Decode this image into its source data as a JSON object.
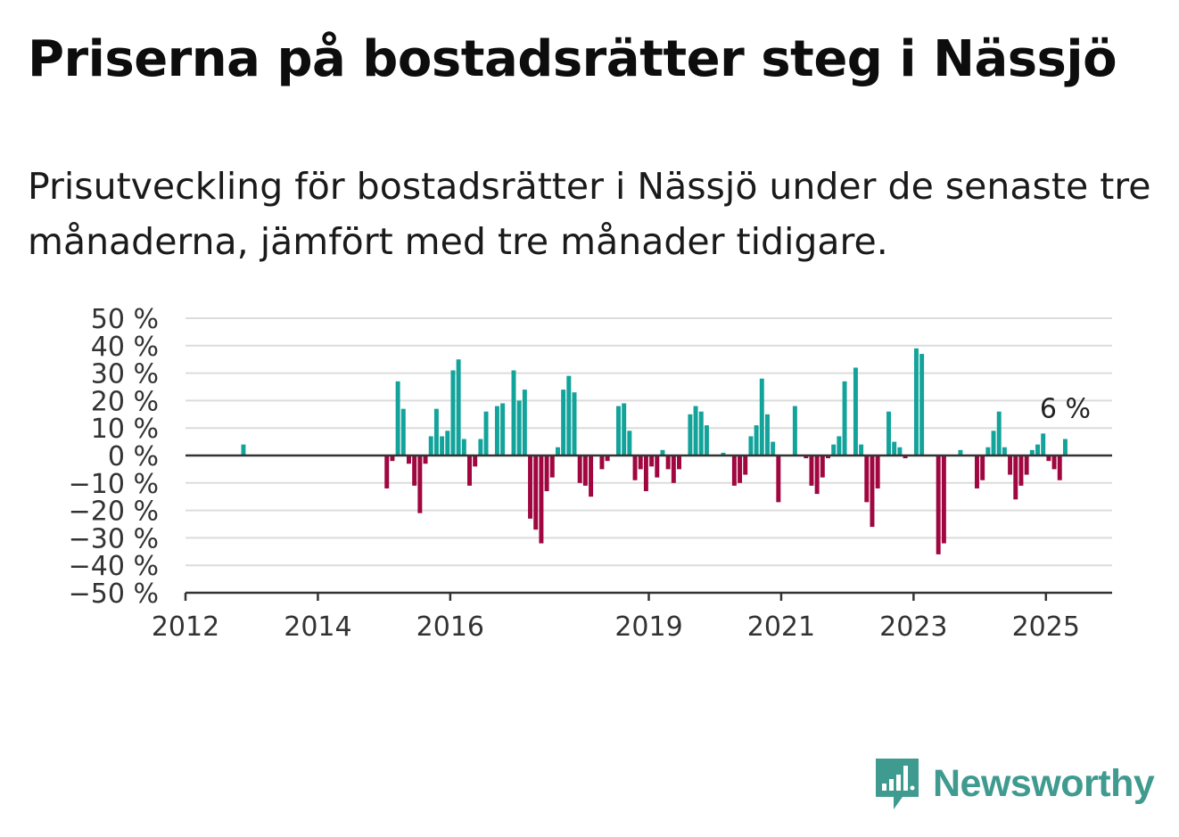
{
  "header": {
    "title": "Priserna på bostadsrätter steg i Nässjö",
    "subtitle": "Prisutveckling för bostadsrätter i Nässjö under de senaste tre månaderna, jämfört med tre månader tidigare."
  },
  "brand": {
    "name": "Newsworthy",
    "icon": "newsworthy-bar-chart-icon"
  },
  "colors": {
    "positive": "#12a39b",
    "negative": "#a0063f",
    "axis": "#333333",
    "grid": "#dcdcdc",
    "brand": "#3f9a8f"
  },
  "chart_data": {
    "type": "bar",
    "title": "",
    "xlabel": "",
    "ylabel": "",
    "ylim": [
      -50,
      50
    ],
    "yticks": [
      50,
      40,
      30,
      20,
      10,
      0,
      -10,
      -20,
      -30,
      -40,
      -50
    ],
    "ytick_labels": [
      "50 %",
      "40 %",
      "30 %",
      "20 %",
      "10 %",
      "0 %",
      "−10 %",
      "−20 %",
      "−30 %",
      "−40 %",
      "−50 %"
    ],
    "xlim": [
      "2012-01",
      "2026-01"
    ],
    "xtick_labels": [
      "2012",
      "2014",
      "2016",
      "2019",
      "2021",
      "2023",
      "2025"
    ],
    "grid": true,
    "last_value_label": "6 %",
    "series": [
      {
        "values": [
          [
            "2012-11",
            4
          ],
          [
            "2015-01",
            -12
          ],
          [
            "2015-02",
            -2
          ],
          [
            "2015-03",
            27
          ],
          [
            "2015-04",
            17
          ],
          [
            "2015-05",
            -3
          ],
          [
            "2015-06",
            -11
          ],
          [
            "2015-07",
            -21
          ],
          [
            "2015-08",
            -3
          ],
          [
            "2015-09",
            7
          ],
          [
            "2015-10",
            17
          ],
          [
            "2015-11",
            7
          ],
          [
            "2015-12",
            9
          ],
          [
            "2016-01",
            31
          ],
          [
            "2016-02",
            35
          ],
          [
            "2016-03",
            6
          ],
          [
            "2016-04",
            -11
          ],
          [
            "2016-05",
            -4
          ],
          [
            "2016-06",
            6
          ],
          [
            "2016-07",
            16
          ],
          [
            "2016-09",
            18
          ],
          [
            "2016-10",
            19
          ],
          [
            "2016-12",
            31
          ],
          [
            "2017-01",
            20
          ],
          [
            "2017-02",
            24
          ],
          [
            "2017-03",
            -23
          ],
          [
            "2017-04",
            -27
          ],
          [
            "2017-05",
            -32
          ],
          [
            "2017-06",
            -13
          ],
          [
            "2017-07",
            -8
          ],
          [
            "2017-08",
            3
          ],
          [
            "2017-09",
            24
          ],
          [
            "2017-10",
            29
          ],
          [
            "2017-11",
            23
          ],
          [
            "2017-12",
            -10
          ],
          [
            "2018-01",
            -11
          ],
          [
            "2018-02",
            -15
          ],
          [
            "2018-04",
            -5
          ],
          [
            "2018-05",
            -2
          ],
          [
            "2018-07",
            18
          ],
          [
            "2018-08",
            19
          ],
          [
            "2018-09",
            9
          ],
          [
            "2018-10",
            -9
          ],
          [
            "2018-11",
            -5
          ],
          [
            "2018-12",
            -13
          ],
          [
            "2019-01",
            -4
          ],
          [
            "2019-02",
            -8
          ],
          [
            "2019-03",
            2
          ],
          [
            "2019-04",
            -5
          ],
          [
            "2019-05",
            -10
          ],
          [
            "2019-06",
            -5
          ],
          [
            "2019-08",
            15
          ],
          [
            "2019-09",
            18
          ],
          [
            "2019-10",
            16
          ],
          [
            "2019-11",
            11
          ],
          [
            "2020-02",
            1
          ],
          [
            "2020-04",
            -11
          ],
          [
            "2020-05",
            -10
          ],
          [
            "2020-06",
            -7
          ],
          [
            "2020-07",
            7
          ],
          [
            "2020-08",
            11
          ],
          [
            "2020-09",
            28
          ],
          [
            "2020-10",
            15
          ],
          [
            "2020-11",
            5
          ],
          [
            "2020-12",
            -17
          ],
          [
            "2021-03",
            18
          ],
          [
            "2021-05",
            -1
          ],
          [
            "2021-06",
            -11
          ],
          [
            "2021-07",
            -14
          ],
          [
            "2021-08",
            -8
          ],
          [
            "2021-09",
            -1
          ],
          [
            "2021-10",
            4
          ],
          [
            "2021-11",
            7
          ],
          [
            "2021-12",
            27
          ],
          [
            "2022-02",
            32
          ],
          [
            "2022-03",
            4
          ],
          [
            "2022-04",
            -17
          ],
          [
            "2022-05",
            -26
          ],
          [
            "2022-06",
            -12
          ],
          [
            "2022-08",
            16
          ],
          [
            "2022-09",
            5
          ],
          [
            "2022-10",
            3
          ],
          [
            "2022-11",
            -1
          ],
          [
            "2023-01",
            39
          ],
          [
            "2023-02",
            37
          ],
          [
            "2023-05",
            -36
          ],
          [
            "2023-06",
            -32
          ],
          [
            "2023-09",
            2
          ],
          [
            "2023-12",
            -12
          ],
          [
            "2024-01",
            -9
          ],
          [
            "2024-02",
            3
          ],
          [
            "2024-03",
            9
          ],
          [
            "2024-04",
            16
          ],
          [
            "2024-05",
            3
          ],
          [
            "2024-06",
            -7
          ],
          [
            "2024-07",
            -16
          ],
          [
            "2024-08",
            -11
          ],
          [
            "2024-09",
            -7
          ],
          [
            "2024-10",
            2
          ],
          [
            "2024-11",
            4
          ],
          [
            "2024-12",
            8
          ],
          [
            "2025-01",
            -2
          ],
          [
            "2025-02",
            -5
          ],
          [
            "2025-03",
            -9
          ],
          [
            "2025-04",
            6
          ]
        ]
      }
    ]
  }
}
